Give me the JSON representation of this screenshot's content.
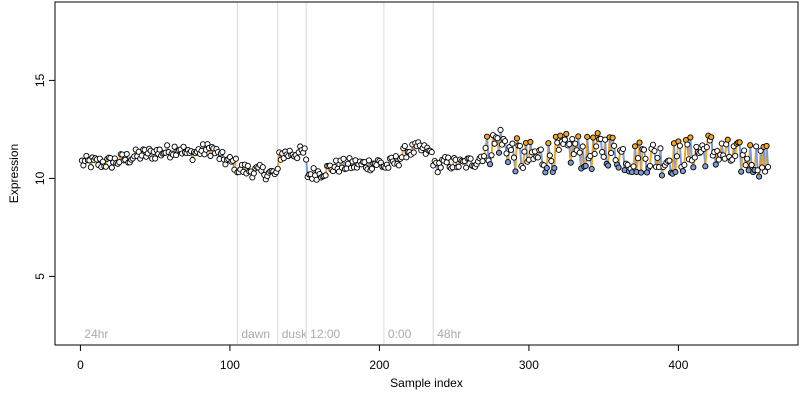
{
  "chart_data": {
    "type": "scatter",
    "title": "",
    "xlabel": "Sample index",
    "ylabel": "Expression",
    "xlim": [
      -17,
      480
    ],
    "ylim": [
      1.5,
      19
    ],
    "xticks": [
      0,
      100,
      200,
      300,
      400
    ],
    "yticks": [
      5,
      10,
      15
    ],
    "grid": false,
    "legend": "none",
    "colors": {
      "up": "#f5a623",
      "down": "#7a9bd8",
      "marker_edge": "#000000",
      "marker_fill": "#ffffff",
      "section_line": "#d9d9d9",
      "section_label": "#aaaaaa"
    },
    "sections": [
      {
        "label": "24hr",
        "x": 0
      },
      {
        "label": "dawn",
        "x": 105
      },
      {
        "label": "dusk",
        "x": 132
      },
      {
        "label": "12:00",
        "x": 151
      },
      {
        "label": "0:00",
        "x": 203
      },
      {
        "label": "48hr",
        "x": 236
      }
    ],
    "anchors": [
      [
        1,
        10.8
      ],
      [
        10,
        10.8
      ],
      [
        20,
        10.8
      ],
      [
        30,
        11.0
      ],
      [
        40,
        11.2
      ],
      [
        50,
        11.3
      ],
      [
        60,
        11.4
      ],
      [
        66,
        11.6
      ],
      [
        72,
        11.2
      ],
      [
        80,
        11.4
      ],
      [
        88,
        11.5
      ],
      [
        95,
        11.0
      ],
      [
        104,
        10.7
      ],
      [
        106,
        10.5
      ],
      [
        114,
        10.4
      ],
      [
        124,
        10.3
      ],
      [
        132,
        10.2
      ],
      [
        133,
        11.2
      ],
      [
        142,
        11.3
      ],
      [
        150,
        11.3
      ],
      [
        152,
        10.2
      ],
      [
        160,
        10.3
      ],
      [
        170,
        10.6
      ],
      [
        180,
        10.7
      ],
      [
        190,
        10.7
      ],
      [
        200,
        10.8
      ],
      [
        204,
        10.6
      ],
      [
        212,
        10.9
      ],
      [
        218,
        11.4
      ],
      [
        226,
        11.5
      ],
      [
        235,
        11.3
      ],
      [
        237,
        10.6
      ],
      [
        245,
        10.8
      ],
      [
        255,
        10.7
      ],
      [
        265,
        10.9
      ],
      [
        272,
        11.4
      ],
      [
        280,
        12.0
      ],
      [
        290,
        11.2
      ],
      [
        300,
        11.0
      ],
      [
        310,
        11.1
      ],
      [
        320,
        11.3
      ],
      [
        330,
        11.5
      ],
      [
        340,
        11.2
      ],
      [
        350,
        11.6
      ],
      [
        360,
        11.3
      ],
      [
        370,
        11.0
      ],
      [
        380,
        11.2
      ],
      [
        390,
        11.0
      ],
      [
        400,
        11.1
      ],
      [
        410,
        11.3
      ],
      [
        420,
        11.5
      ],
      [
        430,
        11.2
      ],
      [
        440,
        11.0
      ],
      [
        450,
        11.1
      ],
      [
        460,
        10.8
      ]
    ]
  }
}
